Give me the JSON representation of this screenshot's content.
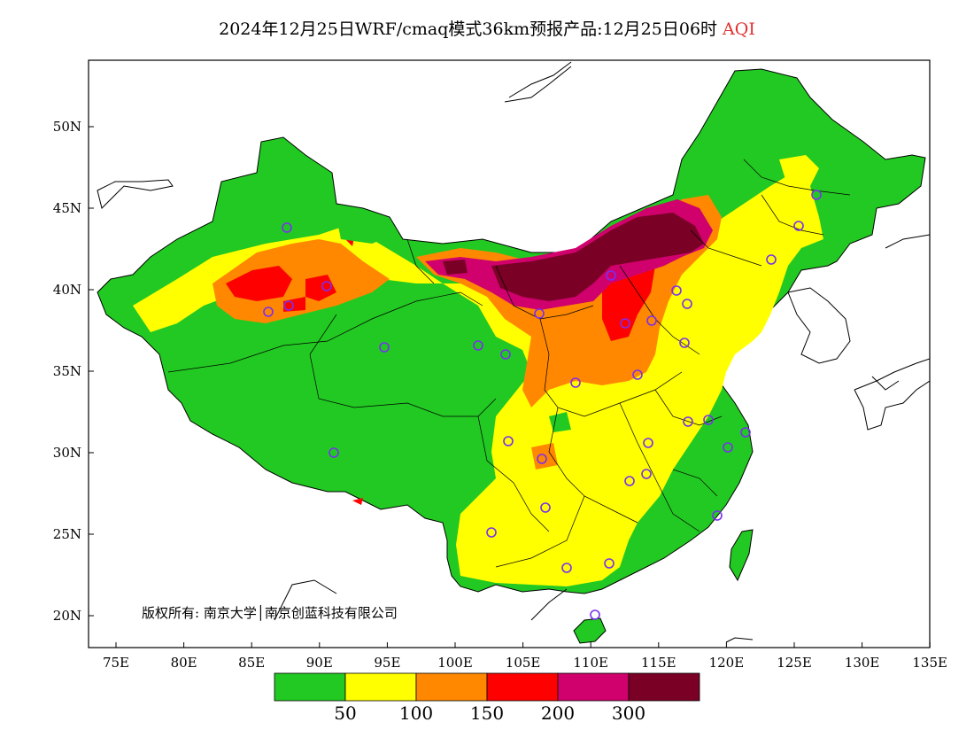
{
  "title": {
    "main": "2024年12月25日WRF/cmaq模式36km预报产品:12月25日06时",
    "suffix": "AQI",
    "suffix_color": "#e03030"
  },
  "map": {
    "lat_labels": [
      "50N",
      "45N",
      "40N",
      "35N",
      "30N",
      "25N",
      "20N"
    ],
    "lon_labels": [
      "75E",
      "80E",
      "85E",
      "90E",
      "95E",
      "100E",
      "105E",
      "110E",
      "115E",
      "120E",
      "125E",
      "130E",
      "135E"
    ],
    "copyright": "版权所有: 南京大学│南京创蓝科技有限公司",
    "station_marker": "circle-icon",
    "station_marker_color": "#7b2ff0"
  },
  "legend": {
    "colors": [
      "#22c922",
      "#ffff00",
      "#ff8800",
      "#ff0000",
      "#d0006c",
      "#7a0026"
    ],
    "labels": [
      "50",
      "100",
      "150",
      "200",
      "300"
    ]
  }
}
